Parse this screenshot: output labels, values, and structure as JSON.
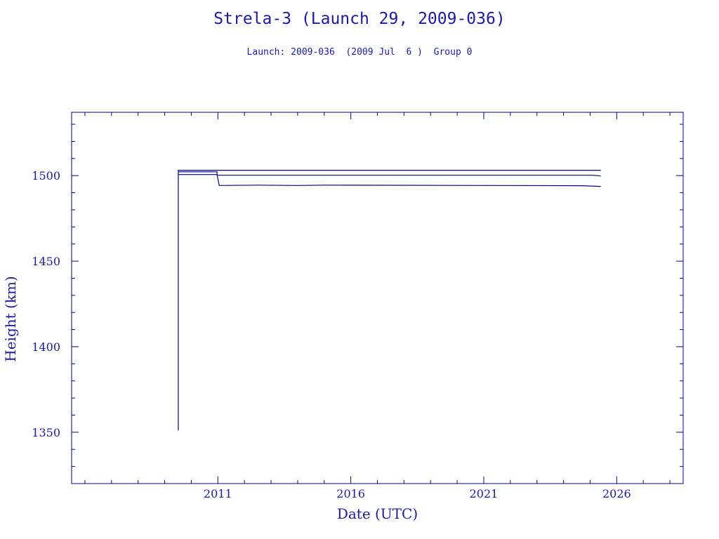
{
  "title": "Strela-3 (Launch 29, 2009-036)",
  "subtitle": "Launch: 2009-036  (2009 Jul  6 )  Group 0",
  "colors": {
    "axis": "#00008b",
    "line": "#00008b",
    "text": "#1a1aa6"
  },
  "chart_data": {
    "type": "line",
    "title": "Strela-3 (Launch 29, 2009-036)",
    "subtitle": "Launch: 2009-036  (2009 Jul  6 )  Group 0",
    "xlabel": "Date (UTC)",
    "ylabel": "Height (km)",
    "xlim": [
      2005.5,
      2028.5
    ],
    "ylim": [
      1320,
      1537
    ],
    "xticks": [
      2011,
      2016,
      2021,
      2026
    ],
    "yticks": [
      1350,
      1400,
      1450,
      1500
    ],
    "grid": false,
    "series": [
      {
        "x": [
          2009.51,
          2009.51,
          2025.4
        ],
        "y": [
          1351,
          1503.1,
          1503.1
        ]
      },
      {
        "x": [
          2009.51,
          2010.97,
          2010.97,
          2025.1,
          2025.4
        ],
        "y": [
          1502.2,
          1502.2,
          1500.2,
          1500.2,
          1499.8
        ]
      },
      {
        "x": [
          2009.51,
          2010.97,
          2011.05,
          2012.5,
          2014.0,
          2015.0,
          2024.7,
          2025.4
        ],
        "y": [
          1500.6,
          1500.6,
          1494.2,
          1494.4,
          1494.2,
          1494.4,
          1494.1,
          1493.7
        ]
      }
    ]
  }
}
